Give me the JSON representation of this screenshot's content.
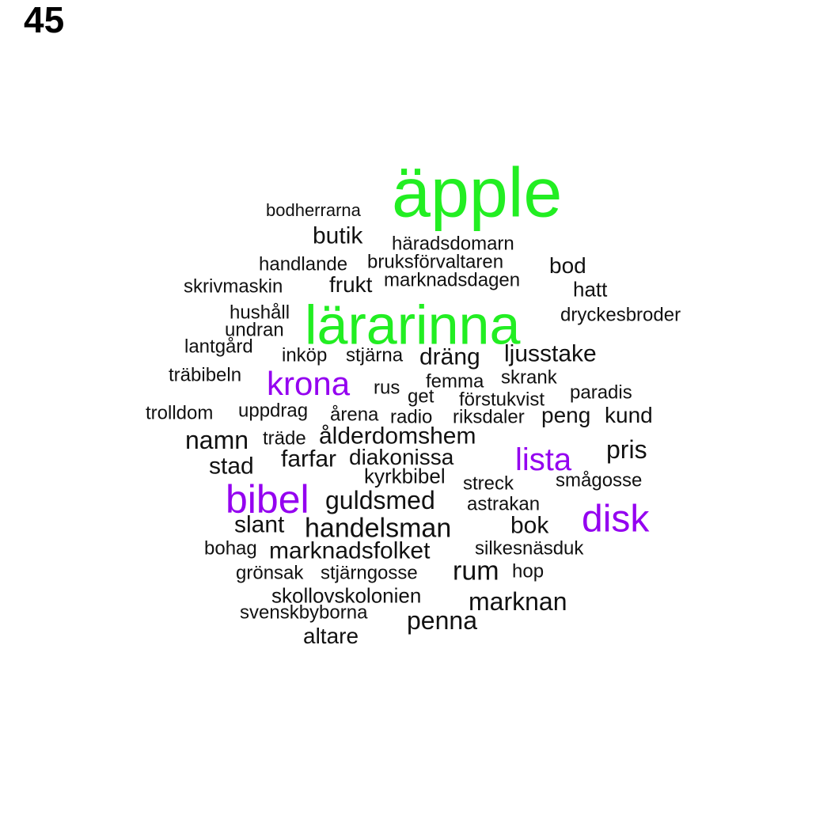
{
  "page_number": "45",
  "colors": {
    "green": "#22ee22",
    "purple": "#9400f0",
    "black": "#111111"
  },
  "words": [
    {
      "text": "äpple",
      "weight": "large",
      "color": "green"
    },
    {
      "text": "lärarinna",
      "weight": "large",
      "color": "green"
    },
    {
      "text": "bibel",
      "weight": "medium",
      "color": "purple"
    },
    {
      "text": "disk",
      "weight": "medium",
      "color": "purple"
    },
    {
      "text": "krona",
      "weight": "medium",
      "color": "purple"
    },
    {
      "text": "lista",
      "weight": "medium",
      "color": "purple"
    },
    {
      "text": "bodherrarna",
      "color": "black"
    },
    {
      "text": "butik",
      "color": "black"
    },
    {
      "text": "häradsdomarn",
      "color": "black"
    },
    {
      "text": "handlande",
      "color": "black"
    },
    {
      "text": "bruksförvaltaren",
      "color": "black"
    },
    {
      "text": "bod",
      "color": "black"
    },
    {
      "text": "skrivmaskin",
      "color": "black"
    },
    {
      "text": "frukt",
      "color": "black"
    },
    {
      "text": "marknadsdagen",
      "color": "black"
    },
    {
      "text": "hatt",
      "color": "black"
    },
    {
      "text": "hushåll",
      "color": "black"
    },
    {
      "text": "dryckesbroder",
      "color": "black"
    },
    {
      "text": "undran",
      "color": "black"
    },
    {
      "text": "lantgård",
      "color": "black"
    },
    {
      "text": "inköp",
      "color": "black"
    },
    {
      "text": "stjärna",
      "color": "black"
    },
    {
      "text": "dräng",
      "color": "black"
    },
    {
      "text": "ljusstake",
      "color": "black"
    },
    {
      "text": "träbibeln",
      "color": "black"
    },
    {
      "text": "femma",
      "color": "black"
    },
    {
      "text": "skrank",
      "color": "black"
    },
    {
      "text": "rus",
      "color": "black"
    },
    {
      "text": "get",
      "color": "black"
    },
    {
      "text": "paradis",
      "color": "black"
    },
    {
      "text": "förstukvist",
      "color": "black"
    },
    {
      "text": "trolldom",
      "color": "black"
    },
    {
      "text": "uppdrag",
      "color": "black"
    },
    {
      "text": "årena",
      "color": "black"
    },
    {
      "text": "radio",
      "color": "black"
    },
    {
      "text": "riksdaler",
      "color": "black"
    },
    {
      "text": "peng",
      "color": "black"
    },
    {
      "text": "kund",
      "color": "black"
    },
    {
      "text": "namn",
      "color": "black"
    },
    {
      "text": "träde",
      "color": "black"
    },
    {
      "text": "ålderdomshem",
      "color": "black"
    },
    {
      "text": "pris",
      "color": "black"
    },
    {
      "text": "stad",
      "color": "black"
    },
    {
      "text": "farfar",
      "color": "black"
    },
    {
      "text": "diakonissa",
      "color": "black"
    },
    {
      "text": "kyrkbibel",
      "color": "black"
    },
    {
      "text": "streck",
      "color": "black"
    },
    {
      "text": "smågosse",
      "color": "black"
    },
    {
      "text": "guldsmed",
      "color": "black"
    },
    {
      "text": "astrakan",
      "color": "black"
    },
    {
      "text": "slant",
      "color": "black"
    },
    {
      "text": "handelsman",
      "color": "black"
    },
    {
      "text": "bok",
      "color": "black"
    },
    {
      "text": "bohag",
      "color": "black"
    },
    {
      "text": "marknadsfolket",
      "color": "black"
    },
    {
      "text": "silkesnäsduk",
      "color": "black"
    },
    {
      "text": "grönsak",
      "color": "black"
    },
    {
      "text": "stjärngosse",
      "color": "black"
    },
    {
      "text": "rum",
      "color": "black"
    },
    {
      "text": "hop",
      "color": "black"
    },
    {
      "text": "skollovskolonien",
      "color": "black"
    },
    {
      "text": "marknan",
      "color": "black"
    },
    {
      "text": "svenskbyborna",
      "color": "black"
    },
    {
      "text": "penna",
      "color": "black"
    },
    {
      "text": "altare",
      "color": "black"
    }
  ]
}
